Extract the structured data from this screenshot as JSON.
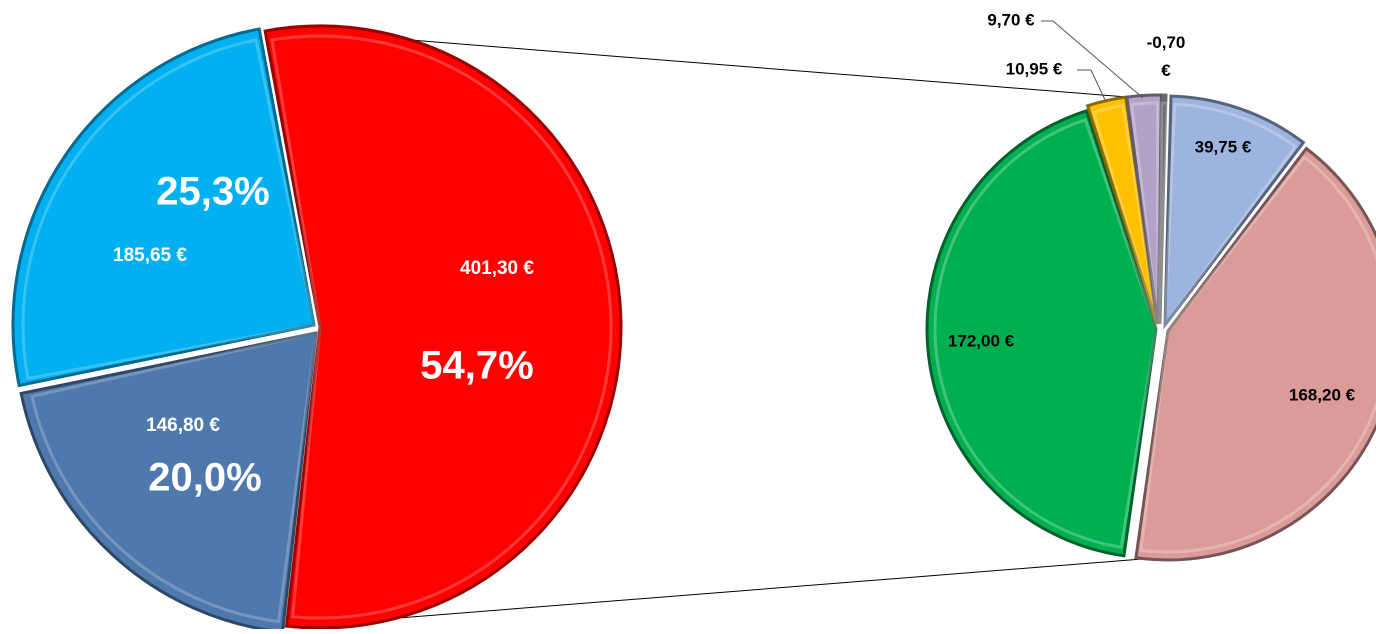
{
  "chart_data": [
    {
      "type": "pie",
      "title": "",
      "slices": [
        {
          "value_label": "401,30 €",
          "value": 401.3,
          "percent_label": "54,7%",
          "color": "#ff0000"
        },
        {
          "value_label": "146,80 €",
          "value": 146.8,
          "percent_label": "20,0%",
          "color": "#4f78ad"
        },
        {
          "value_label": "185,65 €",
          "value": 185.65,
          "percent_label": "25,3%",
          "color": "#00b0f0"
        }
      ]
    },
    {
      "type": "pie",
      "title": "",
      "slices": [
        {
          "value_label": "39,75 €",
          "value": 39.75,
          "color": "#9db4df"
        },
        {
          "value_label": "168,20 €",
          "value": 168.2,
          "color": "#db9b98"
        },
        {
          "value_label": "172,00 €",
          "value": 172.0,
          "color": "#00b050"
        },
        {
          "value_label": "10,95 €",
          "value": 10.95,
          "color": "#ffc000"
        },
        {
          "value_label": "9,70 €",
          "value": 9.7,
          "color": "#b3a2c7"
        },
        {
          "value_label": "-0,70 €",
          "value": -0.7,
          "color": "#c0c0c0"
        }
      ]
    }
  ]
}
